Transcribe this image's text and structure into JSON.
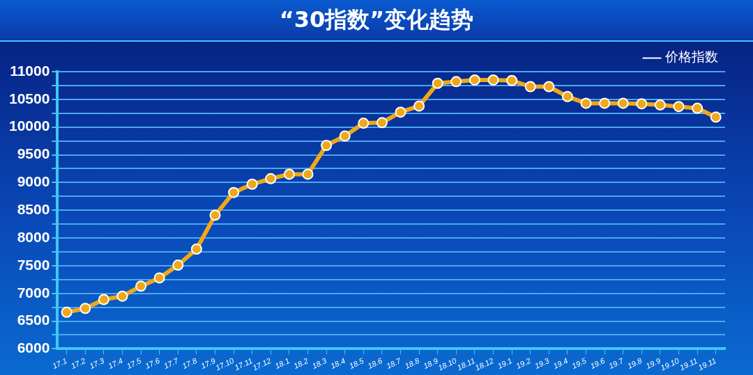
{
  "chart_data": {
    "type": "line",
    "title": "“30指数”变化趋势",
    "categories": [
      "17.1",
      "17.2",
      "17.3",
      "17.4",
      "17.5",
      "17.6",
      "17.7",
      "17.8",
      "17.9",
      "17.10",
      "17.11",
      "17.12",
      "18.1",
      "18.2",
      "18.3",
      "18.4",
      "18.5",
      "18.6",
      "18.7",
      "18.8",
      "18.9",
      "18.10",
      "18.11",
      "18.12",
      "19.1",
      "19.2",
      "19.3",
      "19.4",
      "19.5",
      "19.6",
      "19.7",
      "19.8",
      "19.9",
      "19.10",
      "19.11",
      "19.11"
    ],
    "series": [
      {
        "name": "价格指数",
        "color": "#f0a818",
        "values": [
          6660,
          6730,
          6890,
          6950,
          7130,
          7280,
          7510,
          7800,
          8410,
          8820,
          8970,
          9070,
          9150,
          9150,
          9670,
          9840,
          10070,
          10080,
          10270,
          10380,
          10790,
          10820,
          10850,
          10850,
          10840,
          10730,
          10730,
          10550,
          10430,
          10430,
          10430,
          10420,
          10400,
          10370,
          10340,
          10180
        ]
      }
    ],
    "ylim": [
      6000,
      11000
    ],
    "yticks": [
      6000,
      {
        "value": 6250,
        "label": null
      },
      6500,
      {
        "value": 6750,
        "label": null
      },
      7000,
      {
        "value": 7250,
        "label": null
      },
      7500,
      {
        "value": 7750,
        "label": null
      },
      8000,
      {
        "value": 8250,
        "label": null
      },
      8500,
      {
        "value": 8750,
        "label": null
      },
      9000,
      {
        "value": 9250,
        "label": null
      },
      9500,
      {
        "value": 9750,
        "label": null
      },
      10000,
      {
        "value": 10250,
        "label": null
      },
      10500,
      {
        "value": 10750,
        "label": null
      },
      11000
    ],
    "grid": "y",
    "legend": "top right",
    "marker": "circle",
    "line_style": "solid"
  }
}
